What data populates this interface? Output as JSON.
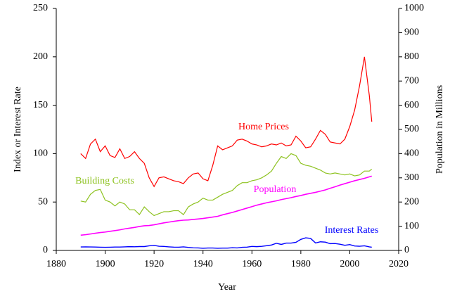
{
  "chart_data": {
    "type": "line",
    "x_label": "Year",
    "y_label": "Index or Interest Rate",
    "y2_label": "Population in Millions",
    "xlim": [
      1880,
      2020
    ],
    "xticks": [
      1880,
      1900,
      1920,
      1940,
      1960,
      1980,
      2000,
      2020
    ],
    "ylim": [
      0,
      250
    ],
    "yticks": [
      0,
      50,
      100,
      150,
      200,
      250
    ],
    "y2lim": [
      0,
      1000
    ],
    "y2ticks": [
      0,
      100,
      200,
      300,
      400,
      500,
      600,
      700,
      800,
      900,
      1000
    ],
    "grid": false,
    "x": [
      1890,
      1892,
      1894,
      1896,
      1898,
      1900,
      1902,
      1904,
      1906,
      1908,
      1910,
      1912,
      1914,
      1916,
      1918,
      1920,
      1922,
      1924,
      1926,
      1928,
      1930,
      1932,
      1934,
      1936,
      1938,
      1940,
      1942,
      1944,
      1946,
      1948,
      1950,
      1952,
      1954,
      1956,
      1958,
      1960,
      1962,
      1964,
      1966,
      1968,
      1970,
      1972,
      1974,
      1976,
      1978,
      1980,
      1982,
      1984,
      1986,
      1988,
      1990,
      1992,
      1994,
      1996,
      1998,
      2000,
      2002,
      2004,
      2006,
      2008,
      2009
    ],
    "series": [
      {
        "name": "Home Prices",
        "color": "#ff0000",
        "values": [
          100,
          95,
          110,
          115,
          102,
          108,
          98,
          96,
          105,
          95,
          97,
          102,
          95,
          90,
          75,
          66,
          75,
          76,
          74,
          72,
          71,
          69,
          75,
          79,
          80,
          74,
          72,
          88,
          108,
          104,
          106,
          108,
          114,
          115,
          113,
          110,
          109,
          107,
          108,
          110,
          109,
          111,
          108,
          109,
          118,
          113,
          106,
          107,
          115,
          124,
          120,
          112,
          111,
          110,
          115,
          128,
          145,
          170,
          200,
          160,
          133
        ]
      },
      {
        "name": "Building Costs",
        "color": "#8dc21f",
        "values": [
          51,
          50,
          58,
          62,
          63,
          52,
          50,
          46,
          50,
          48,
          42,
          42,
          37,
          45,
          40,
          36,
          38,
          40,
          40,
          41,
          41,
          37,
          45,
          48,
          50,
          54,
          52,
          52,
          55,
          58,
          60,
          62,
          67,
          70,
          70,
          72,
          73,
          75,
          78,
          82,
          90,
          97,
          95,
          100,
          98,
          90,
          88,
          87,
          85,
          83,
          80,
          79,
          80,
          79,
          78,
          79,
          77,
          78,
          82,
          82,
          84
        ]
      },
      {
        "name": "Population",
        "color": "#ff00ff",
        "axis": "y2",
        "values": [
          63,
          65,
          68,
          71,
          74,
          76,
          79,
          82,
          85,
          89,
          92,
          95,
          99,
          102,
          103,
          106,
          110,
          114,
          117,
          120,
          123,
          125,
          126,
          128,
          130,
          132,
          135,
          138,
          141,
          147,
          152,
          157,
          163,
          169,
          175,
          181,
          187,
          192,
          197,
          201,
          205,
          210,
          214,
          218,
          223,
          227,
          232,
          236,
          240,
          245,
          250,
          257,
          263,
          270,
          276,
          282,
          288,
          293,
          298,
          304,
          307
        ]
      },
      {
        "name": "Interest Rates",
        "color": "#0000ff",
        "values": [
          3.6,
          3.7,
          3.6,
          3.5,
          3.3,
          3.2,
          3.3,
          3.5,
          3.5,
          3.7,
          3.9,
          3.8,
          4,
          4,
          4.8,
          5.2,
          4.3,
          4.1,
          3.7,
          3.4,
          3.3,
          3.7,
          3.1,
          2.7,
          2.6,
          2.2,
          2.5,
          2.5,
          2.2,
          2.4,
          2.4,
          2.8,
          2.6,
          3.2,
          3.4,
          4.1,
          3.9,
          4.2,
          4.9,
          5.6,
          7.4,
          6.2,
          7.6,
          7.6,
          8.4,
          11.4,
          13,
          12.4,
          7.7,
          8.9,
          8.6,
          7,
          7.1,
          6.4,
          5.3,
          6,
          4.6,
          4.3,
          4.8,
          3.7,
          3.3
        ]
      }
    ]
  }
}
